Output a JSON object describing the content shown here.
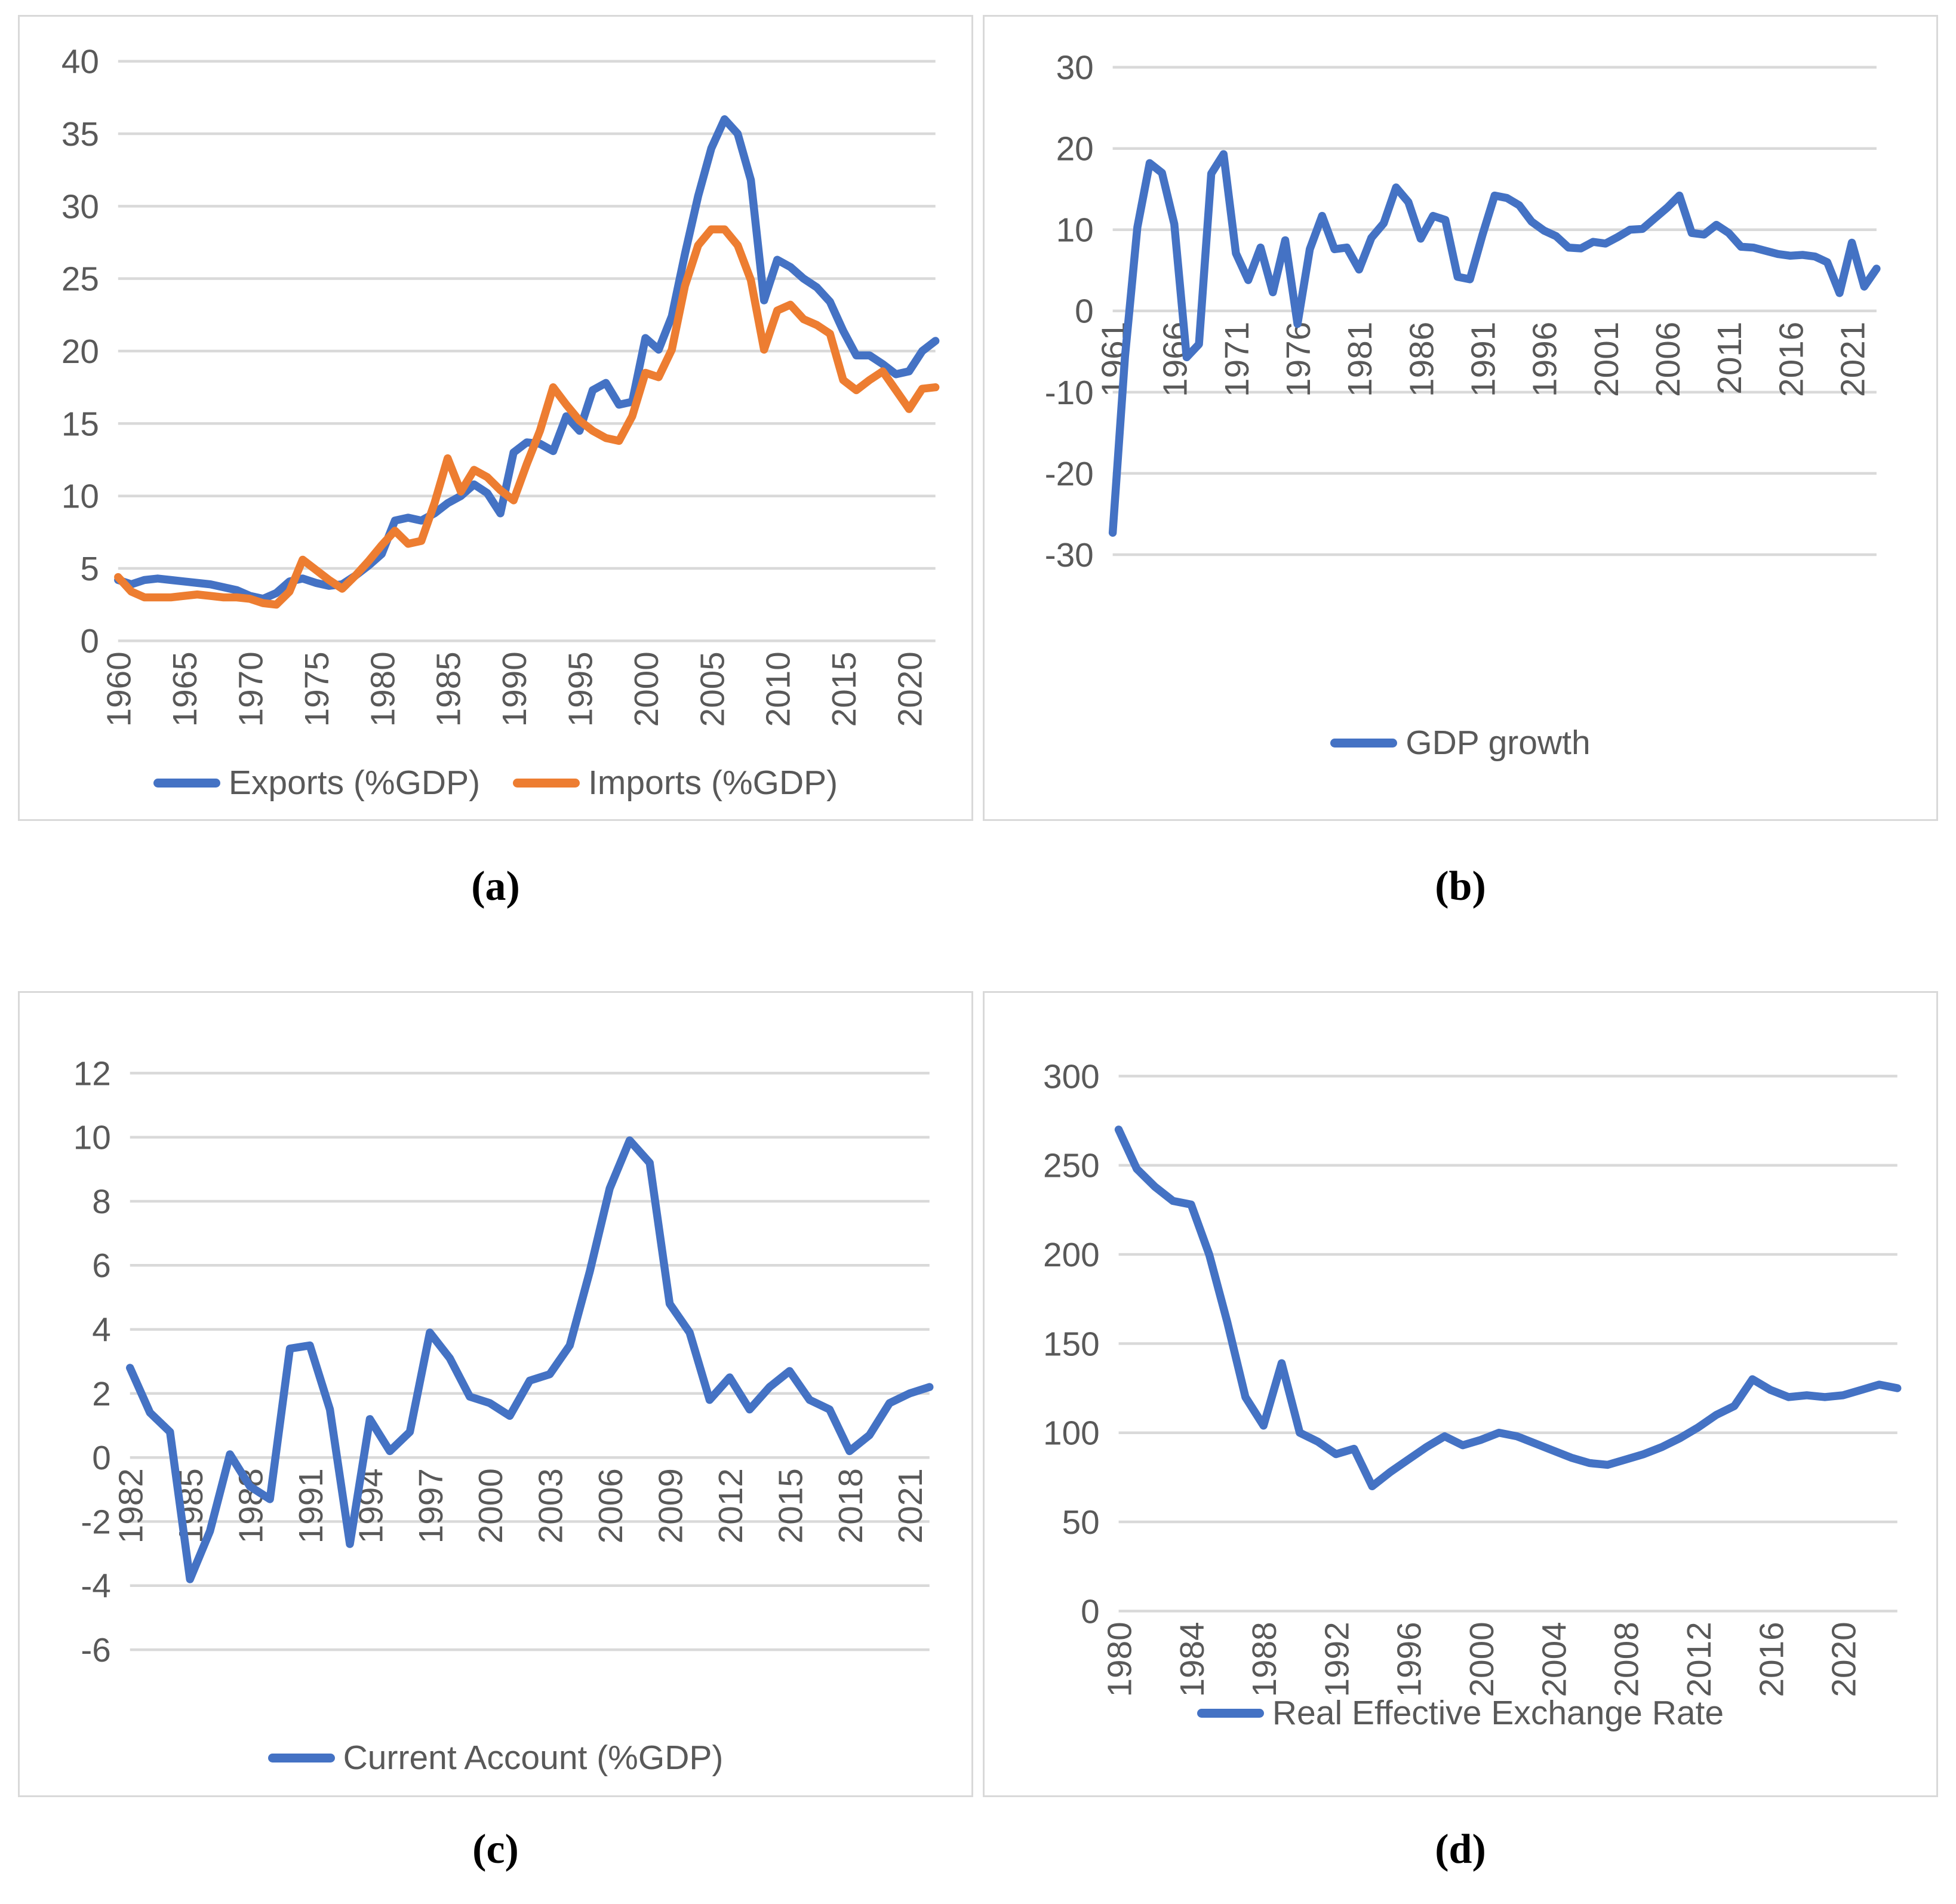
{
  "captions": {
    "a": "(a)",
    "b": "(b)",
    "c": "(c)",
    "d": "(d)"
  },
  "colors": {
    "accent_blue": "#4472C4",
    "accent_orange": "#ED7D31",
    "gridline": "#D9D9D9",
    "axis_text": "#595959",
    "panel_border": "#D9D9D9"
  },
  "chart_data": [
    {
      "id": "a",
      "type": "line",
      "title": "",
      "xlabel": "",
      "ylabel": "",
      "grid": "horizontal",
      "legend_position": "bottom",
      "x_start": 1960,
      "x_ticks": [
        1960,
        1965,
        1970,
        1975,
        1980,
        1985,
        1990,
        1995,
        2000,
        2005,
        2010,
        2015,
        2020
      ],
      "y_ticks": [
        40,
        35,
        30,
        25,
        20,
        15,
        10,
        5,
        0
      ],
      "ylim": [
        0,
        40
      ],
      "layout": {
        "plot_left": 165,
        "plot_top": 75,
        "plot_right": 1540,
        "plot_bottom": 1050
      },
      "series": [
        {
          "name": "Exports (%GDP)",
          "color": "#4472C4",
          "values": [
            4.2,
            3.9,
            4.2,
            4.3,
            4.2,
            4.1,
            4.0,
            3.9,
            3.7,
            3.5,
            3.1,
            2.9,
            3.3,
            4.1,
            4.3,
            4.0,
            3.8,
            3.9,
            4.5,
            5.2,
            6.0,
            8.3,
            8.5,
            8.3,
            8.8,
            9.5,
            10.0,
            10.8,
            10.2,
            8.8,
            13.0,
            13.7,
            13.6,
            13.1,
            15.5,
            14.5,
            17.3,
            17.8,
            16.3,
            16.5,
            20.9,
            20.1,
            22.4,
            26.7,
            30.7,
            34.0,
            36.0,
            35.0,
            31.8,
            23.5,
            26.3,
            25.8,
            25.0,
            24.4,
            23.4,
            21.4,
            19.7,
            19.7,
            19.1,
            18.4,
            18.6,
            20.0,
            20.7
          ]
        },
        {
          "name": "Imports (%GDP)",
          "color": "#ED7D31",
          "values": [
            4.4,
            3.4,
            3.0,
            3.0,
            3.0,
            3.1,
            3.2,
            3.1,
            3.0,
            3.0,
            2.9,
            2.6,
            2.5,
            3.4,
            5.6,
            4.9,
            4.2,
            3.6,
            4.5,
            5.5,
            6.6,
            7.6,
            6.7,
            6.9,
            9.5,
            12.6,
            10.3,
            11.8,
            11.3,
            10.4,
            9.7,
            12.2,
            14.5,
            17.5,
            16.3,
            15.2,
            14.5,
            14.0,
            13.8,
            15.5,
            18.5,
            18.2,
            20.1,
            24.5,
            27.3,
            28.4,
            28.4,
            27.3,
            24.9,
            20.1,
            22.8,
            23.2,
            22.2,
            21.8,
            21.2,
            18.0,
            17.3,
            18.0,
            18.6,
            17.3,
            16.0,
            17.4,
            17.5
          ]
        }
      ]
    },
    {
      "id": "b",
      "type": "line",
      "title": "",
      "xlabel": "",
      "ylabel": "",
      "grid": "horizontal",
      "legend_position": "bottom",
      "x_start": 1961,
      "x_ticks": [
        1961,
        1966,
        1971,
        1976,
        1981,
        1986,
        1991,
        1996,
        2001,
        2006,
        2011,
        2016,
        2021
      ],
      "y_ticks": [
        30,
        20,
        10,
        0,
        -10,
        -20,
        -30
      ],
      "ylim": [
        -30,
        30
      ],
      "layout": {
        "plot_left": 215,
        "plot_top": 85,
        "plot_right": 1500,
        "plot_bottom": 905
      },
      "series": [
        {
          "name": "GDP growth",
          "color": "#4472C4",
          "values": [
            -27.3,
            -5.6,
            10.3,
            18.2,
            17.0,
            10.7,
            -5.7,
            -4.1,
            16.9,
            19.3,
            7.1,
            3.8,
            7.8,
            2.3,
            8.7,
            -1.6,
            7.6,
            11.7,
            7.6,
            7.8,
            5.1,
            9.0,
            10.8,
            15.2,
            13.4,
            8.9,
            11.7,
            11.2,
            4.2,
            3.9,
            9.3,
            14.2,
            13.9,
            13.0,
            11.0,
            9.9,
            9.2,
            7.8,
            7.7,
            8.5,
            8.3,
            9.1,
            10.0,
            10.1,
            11.4,
            12.7,
            14.2,
            9.6,
            9.4,
            10.6,
            9.6,
            7.9,
            7.8,
            7.4,
            7.0,
            6.8,
            6.9,
            6.7,
            6.0,
            2.2,
            8.4,
            3.0,
            5.2
          ]
        }
      ]
    },
    {
      "id": "c",
      "type": "line",
      "title": "",
      "xlabel": "",
      "ylabel": "",
      "grid": "horizontal",
      "legend_position": "bottom",
      "x_start": 1982,
      "x_ticks": [
        1982,
        1985,
        1988,
        1991,
        1994,
        1997,
        2000,
        2003,
        2006,
        2009,
        2012,
        2015,
        2018,
        2021
      ],
      "y_ticks": [
        12,
        10,
        8,
        6,
        4,
        2,
        0,
        -2,
        -4,
        -6
      ],
      "ylim": [
        -6,
        12
      ],
      "layout": {
        "plot_left": 185,
        "plot_top": 135,
        "plot_right": 1530,
        "plot_bottom": 1105
      },
      "series": [
        {
          "name": "Current Account (%GDP)",
          "color": "#4472C4",
          "values": [
            2.8,
            1.4,
            0.8,
            -3.8,
            -2.3,
            0.1,
            -0.9,
            -1.3,
            3.4,
            3.5,
            1.5,
            -2.7,
            1.2,
            0.2,
            0.8,
            3.9,
            3.1,
            1.9,
            1.7,
            1.3,
            2.4,
            2.6,
            3.5,
            5.8,
            8.4,
            9.9,
            9.2,
            4.8,
            3.9,
            1.8,
            2.5,
            1.5,
            2.2,
            2.7,
            1.8,
            1.5,
            0.2,
            0.7,
            1.7,
            2.0,
            2.2
          ]
        }
      ]
    },
    {
      "id": "d",
      "type": "line",
      "title": "",
      "xlabel": "",
      "ylabel": "",
      "grid": "horizontal",
      "legend_position": "bottom",
      "x_start": 1980,
      "x_ticks": [
        1980,
        1984,
        1988,
        1992,
        1996,
        2000,
        2004,
        2008,
        2012,
        2016,
        2020
      ],
      "y_ticks": [
        300,
        250,
        200,
        150,
        100,
        50,
        0
      ],
      "ylim": [
        0,
        300
      ],
      "layout": {
        "plot_left": 225,
        "plot_top": 140,
        "plot_right": 1535,
        "plot_bottom": 1040
      },
      "series": [
        {
          "name": "Real Effective Exchange Rate",
          "color": "#4472C4",
          "values": [
            270,
            248,
            238,
            230,
            228,
            200,
            162,
            120,
            104,
            139,
            100,
            95,
            88,
            91,
            70,
            78,
            85,
            92,
            98,
            93,
            96,
            100,
            98,
            94,
            90,
            86,
            83,
            82,
            85,
            88,
            92,
            97,
            103,
            110,
            115,
            130,
            124,
            120,
            121,
            120,
            121,
            124,
            127,
            125
          ]
        }
      ]
    }
  ]
}
